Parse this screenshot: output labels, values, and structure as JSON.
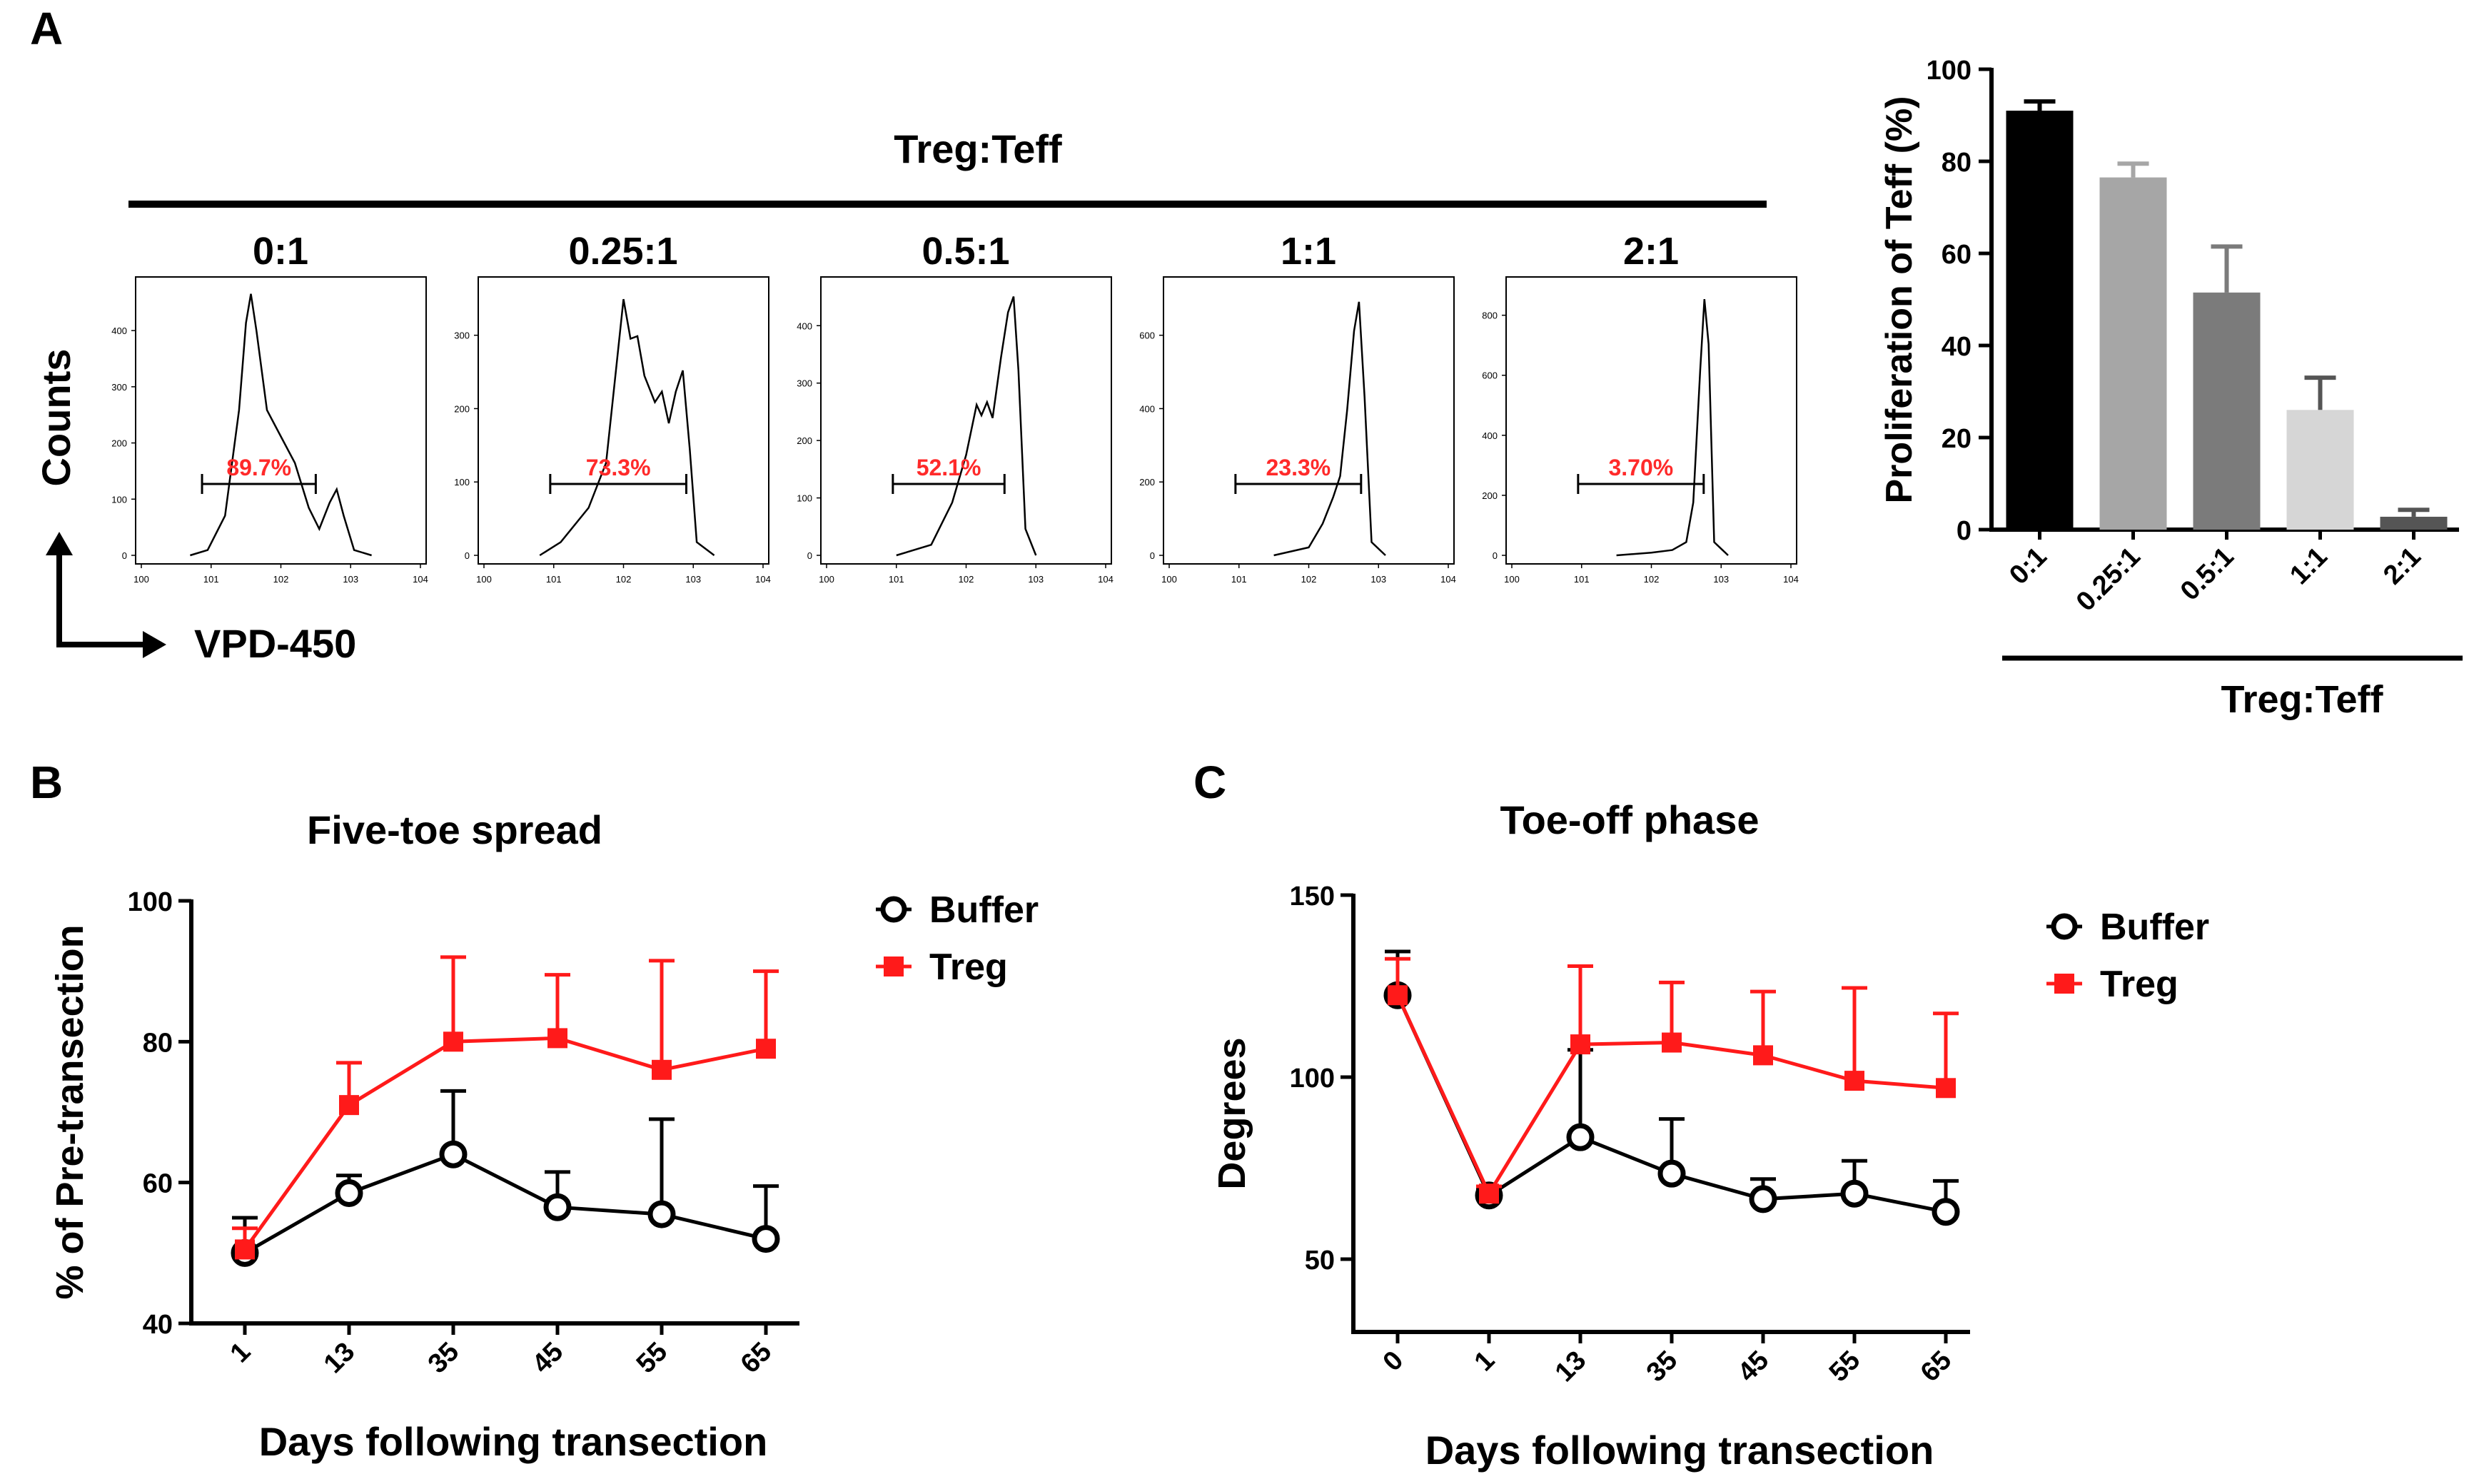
{
  "panels": {
    "A": {
      "label": "A",
      "group_title": "Treg:Teff",
      "y_axis_label": "Counts",
      "x_axis_label": "VPD-450",
      "colors": {
        "gate_text": "#ff2a2a",
        "line": "#000000"
      }
    },
    "B": {
      "label": "B"
    },
    "C": {
      "label": "C"
    }
  },
  "chart_data": [
    {
      "id": "A-histograms",
      "type": "histogram",
      "group_title": "Treg:Teff",
      "x_scale": "log",
      "x_range": [
        1,
        10000
      ],
      "x_tick_labels": [
        "10^0",
        "10^1",
        "10^2",
        "10^3",
        "10^4"
      ],
      "histograms": [
        {
          "title": "0:1",
          "gate_percent": "89.7%",
          "y_ticks": [
            "0",
            "100",
            "200",
            "300",
            "400"
          ],
          "ymax": 470
        },
        {
          "title": "0.25:1",
          "gate_percent": "73.3%",
          "y_ticks": [
            "0",
            "100",
            "200",
            "300"
          ],
          "ymax": 360
        },
        {
          "title": "0.5:1",
          "gate_percent": "52.1%",
          "y_ticks": [
            "0",
            "100",
            "200",
            "300",
            "400"
          ],
          "ymax": 460
        },
        {
          "title": "1:1",
          "gate_percent": "23.3%",
          "y_ticks": [
            "0",
            "200",
            "400",
            "600"
          ],
          "ymax": 720
        },
        {
          "title": "2:1",
          "gate_percent": "3.70%",
          "y_ticks": [
            "0",
            "200",
            "400",
            "600",
            "800"
          ],
          "ymax": 880
        }
      ]
    },
    {
      "id": "A-bar",
      "type": "bar",
      "categories": [
        "0:1",
        "0.25:1",
        "0.5:1",
        "1:1",
        "2:1"
      ],
      "values": [
        91,
        76.5,
        51.5,
        26,
        2.8
      ],
      "errors": [
        2,
        3,
        10,
        7,
        1.5
      ],
      "colors": [
        "#000000",
        "#a6a6a6",
        "#7b7b7b",
        "#d6d6d6",
        "#555555"
      ],
      "ylabel": "Proliferation of Teff (%)",
      "xlabel": "Treg:Teff",
      "ylim": [
        0,
        100
      ],
      "y_ticks": [
        0,
        20,
        40,
        60,
        80,
        100
      ]
    },
    {
      "id": "B",
      "type": "line",
      "title": "Five-toe spread",
      "categories": [
        "1",
        "13",
        "35",
        "45",
        "55",
        "65"
      ],
      "series": [
        {
          "name": "Buffer",
          "values": [
            50,
            58.5,
            64,
            56.5,
            55.5,
            52
          ],
          "errors": [
            5,
            2.5,
            9,
            5,
            13.5,
            7.5
          ],
          "color": "#000000",
          "marker": "open-circle"
        },
        {
          "name": "Treg",
          "values": [
            50.5,
            71,
            80,
            80.5,
            76,
            79
          ],
          "errors": [
            3,
            6,
            12,
            9,
            15.5,
            11
          ],
          "color": "#ff1a1a",
          "marker": "square"
        }
      ],
      "ylabel": "% of Pre-transection",
      "xlabel": "Days following transection",
      "ylim": [
        40,
        100
      ],
      "y_ticks": [
        40,
        60,
        80,
        100
      ],
      "legend": "top-right"
    },
    {
      "id": "C",
      "type": "line",
      "title": "Toe-off phase",
      "categories": [
        "0",
        "1",
        "13",
        "35",
        "45",
        "55",
        "65"
      ],
      "series": [
        {
          "name": "Buffer",
          "values": [
            122.5,
            67.5,
            83.5,
            73.5,
            66.5,
            68,
            63
          ],
          "errors": [
            12,
            2,
            24,
            15,
            5.5,
            9,
            8.5
          ],
          "color": "#000000",
          "marker": "open-circle"
        },
        {
          "name": "Treg",
          "values": [
            122.5,
            68,
            109,
            109.5,
            106,
            99,
            97
          ],
          "errors": [
            10,
            2,
            21.5,
            16.5,
            17.5,
            25.5,
            20.5
          ],
          "color": "#ff1a1a",
          "marker": "square"
        }
      ],
      "ylabel": "Degrees",
      "xlabel": "Days following transection",
      "ylim": [
        30,
        150
      ],
      "y_ticks": [
        50,
        100,
        150
      ],
      "legend": "top-right"
    }
  ]
}
